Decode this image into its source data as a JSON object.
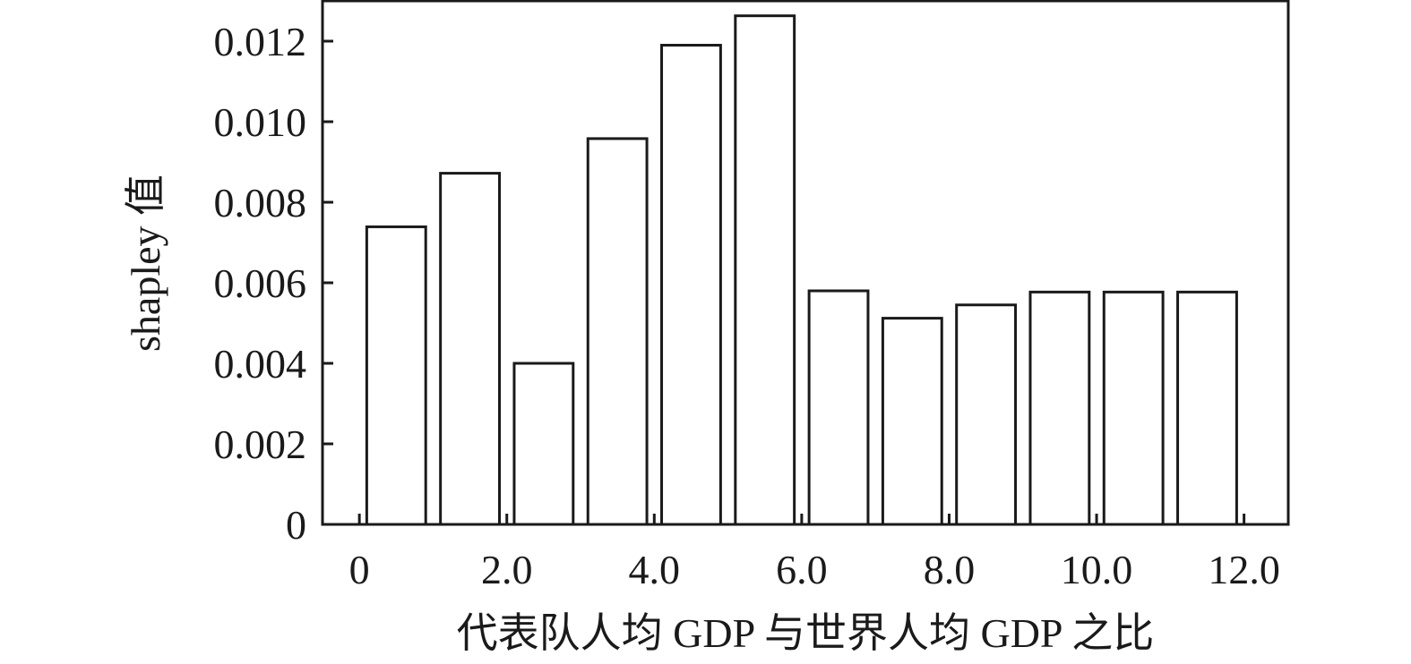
{
  "chart_data": {
    "type": "bar",
    "xlabel": "代表队人均 GDP 与世界人均 GDP 之比",
    "ylabel": "shapley 值",
    "ylim": [
      0,
      0.013
    ],
    "xlim": [
      -0.5,
      12.6
    ],
    "y_ticks": [
      0,
      0.002,
      0.004,
      0.006,
      0.008,
      0.01,
      0.012
    ],
    "y_tick_labels": [
      "0",
      "0.002",
      "0.004",
      "0.006",
      "0.008",
      "0.010",
      "0.012"
    ],
    "x_ticks": [
      0,
      2,
      4,
      6,
      8,
      10,
      12
    ],
    "x_tick_labels": [
      "0",
      "2.0",
      "4.0",
      "6.0",
      "8.0",
      "10.0",
      "12.0"
    ],
    "bars": [
      {
        "x0": 0.1,
        "x1": 0.9,
        "value": 0.00739
      },
      {
        "x0": 1.1,
        "x1": 1.9,
        "value": 0.00872
      },
      {
        "x0": 2.1,
        "x1": 2.9,
        "value": 0.004
      },
      {
        "x0": 3.1,
        "x1": 3.9,
        "value": 0.00958
      },
      {
        "x0": 4.1,
        "x1": 4.9,
        "value": 0.0119
      },
      {
        "x0": 5.1,
        "x1": 5.9,
        "value": 0.01263
      },
      {
        "x0": 6.1,
        "x1": 6.9,
        "value": 0.0058
      },
      {
        "x0": 7.1,
        "x1": 7.9,
        "value": 0.00512
      },
      {
        "x0": 8.1,
        "x1": 8.9,
        "value": 0.00545
      },
      {
        "x0": 9.1,
        "x1": 9.9,
        "value": 0.00577
      },
      {
        "x0": 10.1,
        "x1": 10.9,
        "value": 0.00577
      },
      {
        "x0": 11.1,
        "x1": 11.9,
        "value": 0.00577
      }
    ],
    "grid": false,
    "legend": "none"
  }
}
